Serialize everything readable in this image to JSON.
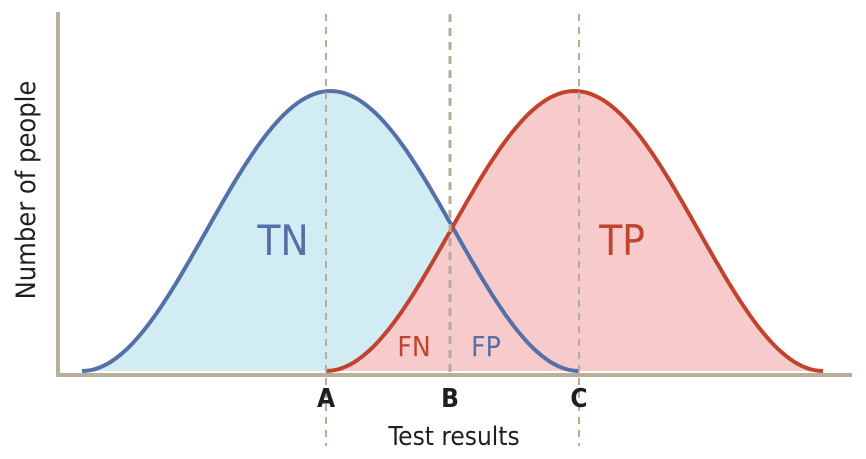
{
  "labels": {
    "ylabel": "Number of people",
    "xlabel": "Test results",
    "tn": "TN",
    "tp": "TP",
    "fn": "FN",
    "fp": "FP",
    "cut_a": "A",
    "cut_b": "B",
    "cut_c": "C"
  },
  "colors": {
    "negative_line": "#5470a8",
    "negative_fill": "#d2ecf4",
    "positive_line": "#c0432e",
    "positive_fill": "#f7cacb",
    "axis": "#bbae9a",
    "cutoff": "#b9ab98",
    "text_dark": "#1f1f1f"
  }
}
